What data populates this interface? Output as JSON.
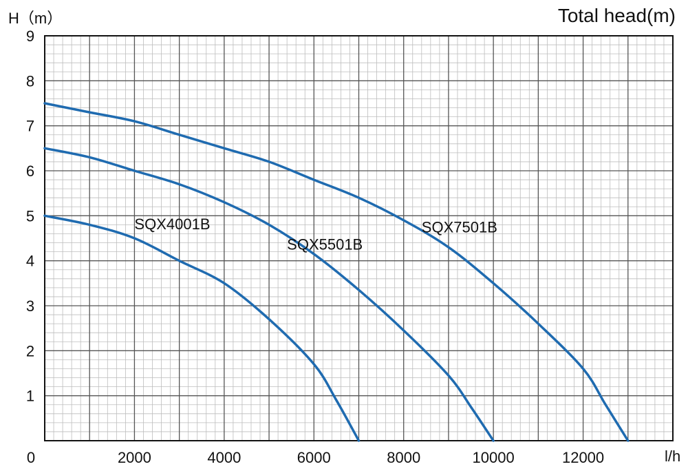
{
  "chart_data": {
    "type": "line",
    "title": "Total head(m)",
    "ylabel": "H（m）",
    "xlabel": "l/h",
    "xlim": [
      0,
      14000
    ],
    "ylim": [
      0,
      9
    ],
    "x_major_step": 1000,
    "x_tick_labels": [
      "0",
      "2000",
      "4000",
      "6000",
      "8000",
      "10000",
      "12000"
    ],
    "x_tick_values": [
      0,
      2000,
      4000,
      6000,
      8000,
      10000,
      12000
    ],
    "y_tick_labels": [
      "1",
      "2",
      "3",
      "4",
      "5",
      "6",
      "7",
      "8",
      "9"
    ],
    "y_tick_values": [
      1,
      2,
      3,
      4,
      5,
      6,
      7,
      8,
      9
    ],
    "grid": true,
    "minor_grid_subdivisions": 5,
    "line_color": "#1F6BB0",
    "grid_major_color": "#555555",
    "grid_minor_color": "#bdbdbd",
    "series": [
      {
        "name": "SQX4001B",
        "x": [
          0,
          1000,
          2000,
          3000,
          4000,
          5000,
          6000,
          6500,
          7000
        ],
        "y": [
          5.0,
          4.8,
          4.5,
          4.0,
          3.5,
          2.7,
          1.7,
          0.9,
          0.0
        ]
      },
      {
        "name": "SQX5501B",
        "x": [
          0,
          1000,
          2000,
          3000,
          4000,
          5000,
          6000,
          7000,
          8000,
          9000,
          9500,
          10000
        ],
        "y": [
          6.5,
          6.3,
          6.0,
          5.7,
          5.3,
          4.8,
          4.15,
          3.35,
          2.45,
          1.45,
          0.75,
          0.0
        ]
      },
      {
        "name": "SQX7501B",
        "x": [
          0,
          1000,
          2000,
          3000,
          4000,
          5000,
          6000,
          7000,
          8000,
          9000,
          10000,
          11000,
          12000,
          12500,
          13000
        ],
        "y": [
          7.5,
          7.3,
          7.1,
          6.8,
          6.5,
          6.2,
          5.8,
          5.4,
          4.9,
          4.3,
          3.5,
          2.6,
          1.6,
          0.8,
          0.0
        ]
      }
    ]
  }
}
